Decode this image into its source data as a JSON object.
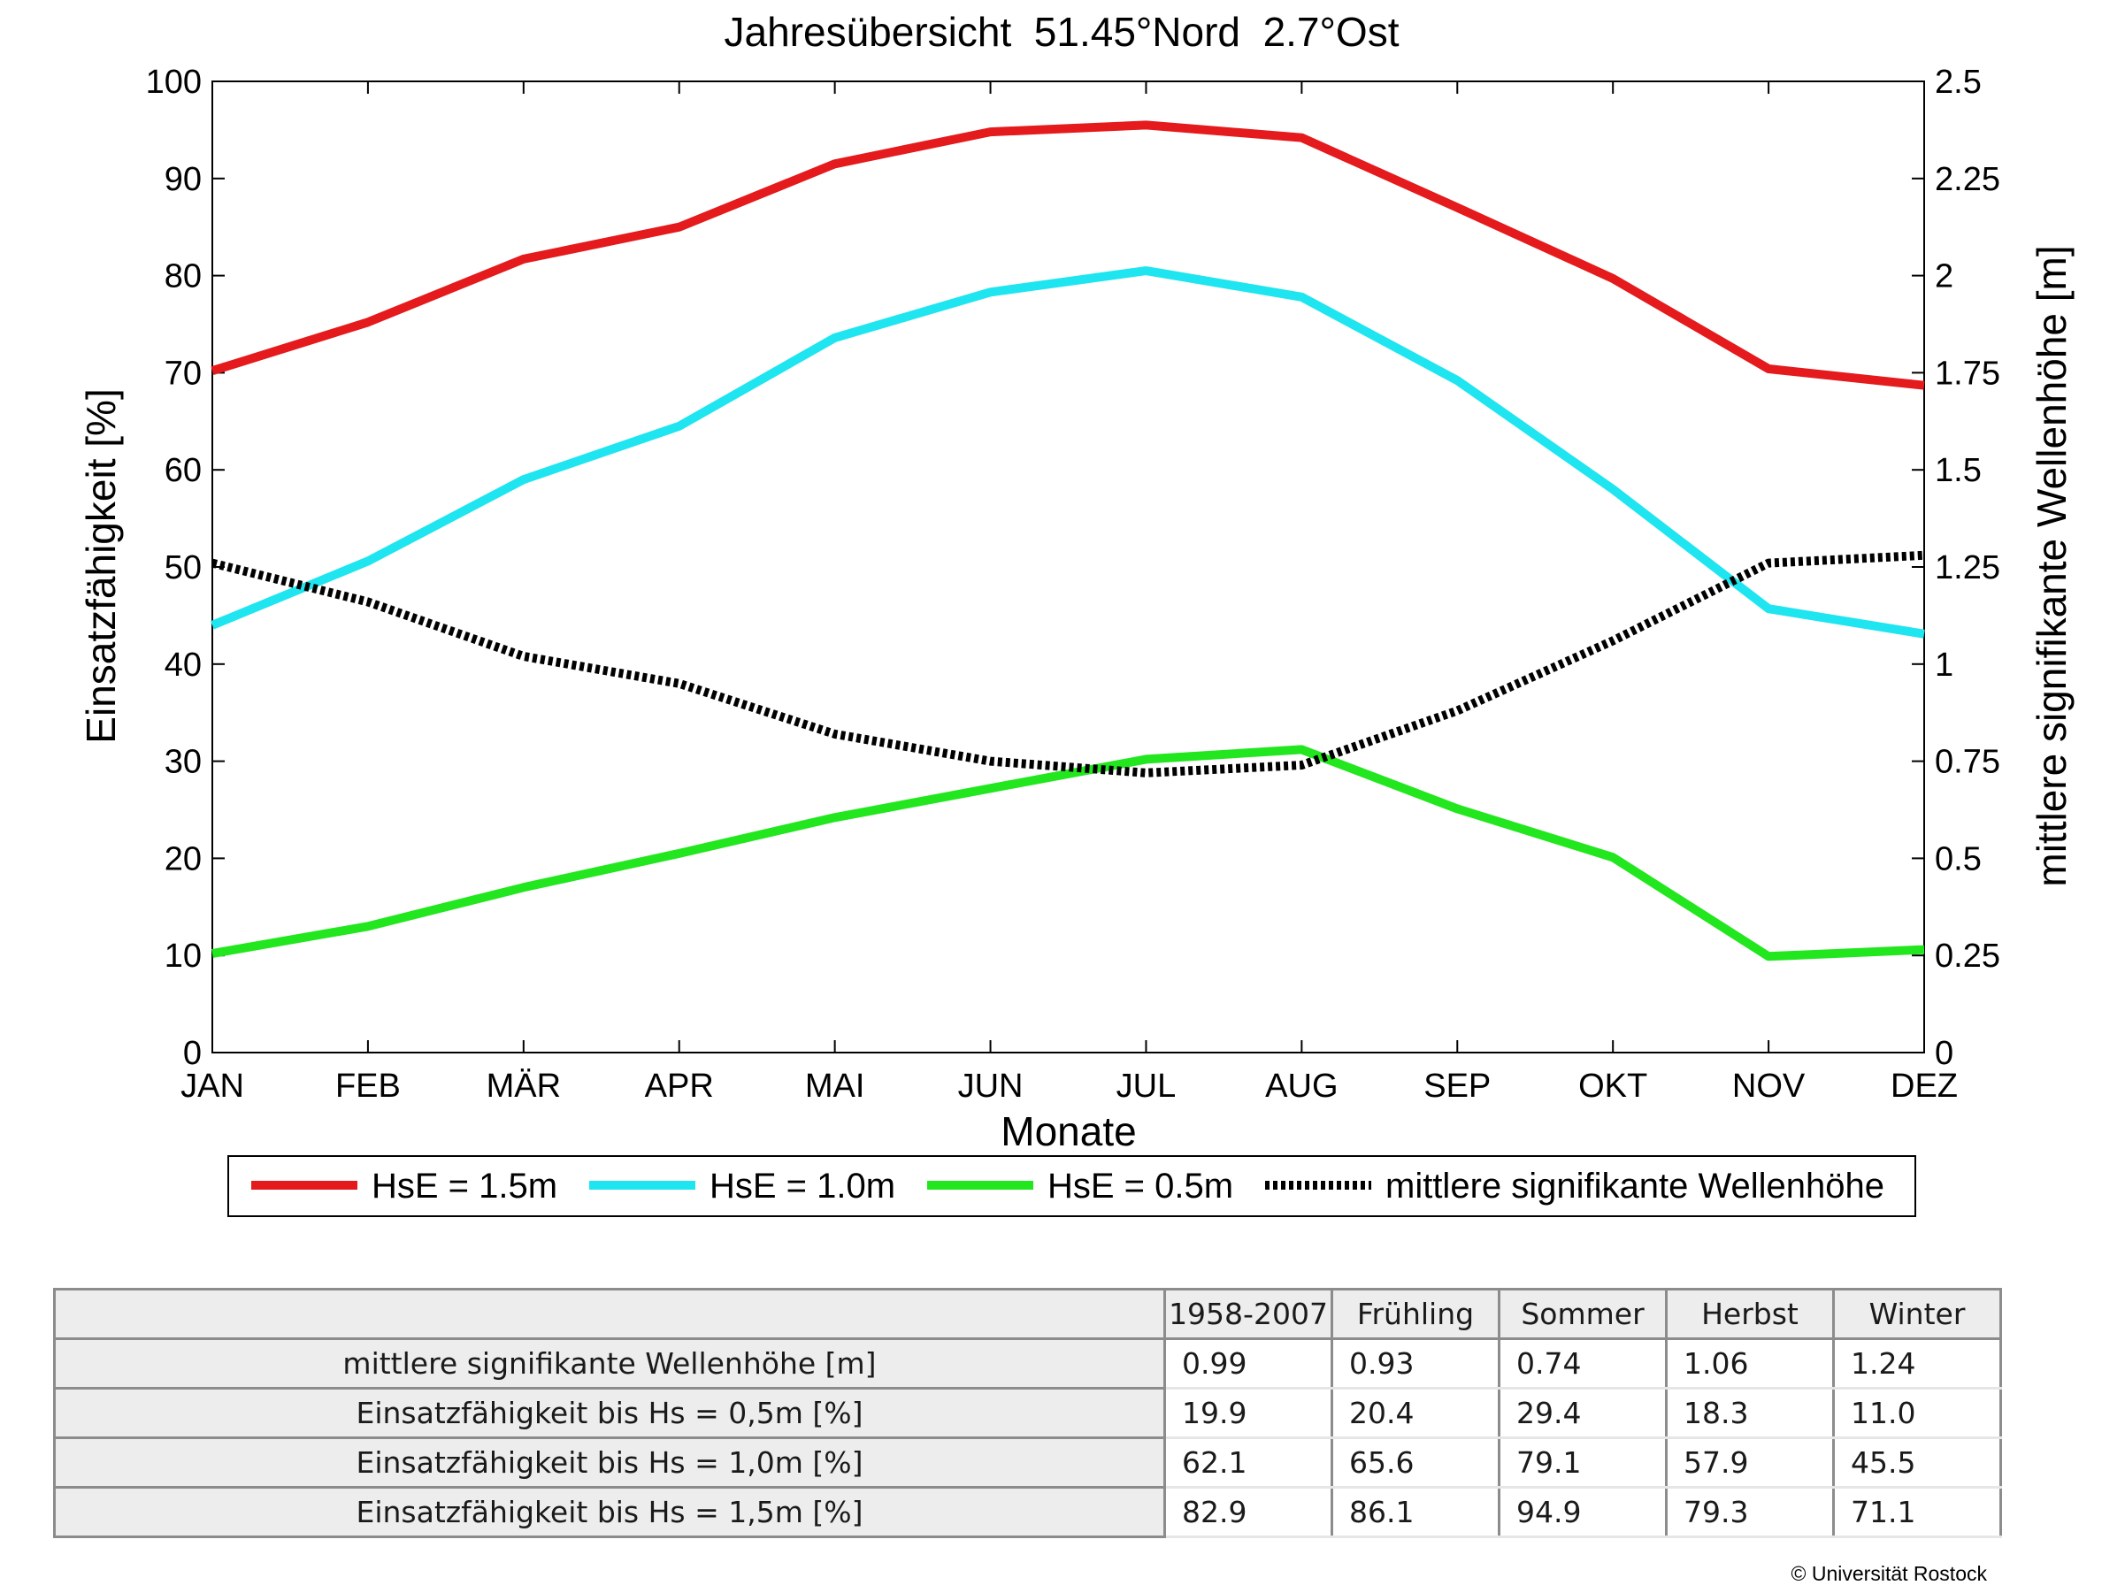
{
  "chart_data": {
    "type": "line",
    "title": "Jahresübersicht  51.45°Nord  2.7°Ost",
    "xlabel": "Monate",
    "ylabel_left": "Einsatzfähigkeit [%]",
    "ylabel_right": "mittlere signifikante Wellenhöhe [m]",
    "categories": [
      "JAN",
      "FEB",
      "MÄR",
      "APR",
      "MAI",
      "JUN",
      "JUL",
      "AUG",
      "SEP",
      "OKT",
      "NOV",
      "DEZ"
    ],
    "ylim_left": [
      0,
      100
    ],
    "ylim_right": [
      0,
      2.5
    ],
    "yticks_left": [
      "0",
      "10",
      "20",
      "30",
      "40",
      "50",
      "60",
      "70",
      "80",
      "90",
      "100"
    ],
    "yticks_right": [
      "0",
      "0.25",
      "0.5",
      "0.75",
      "1",
      "1.25",
      "1.5",
      "1.75",
      "2",
      "2.25",
      "2.5"
    ],
    "grid": false,
    "legend_position": "bottom",
    "series": [
      {
        "name": "HsE = 1.5m",
        "axis": "left",
        "color": "#e41a1c",
        "style": "solid",
        "values": [
          70.2,
          75.2,
          81.7,
          85.0,
          91.5,
          94.8,
          95.5,
          94.2,
          87.0,
          79.7,
          70.4,
          68.7
        ]
      },
      {
        "name": "HsE = 1.0m",
        "axis": "left",
        "color": "#1ee5ef",
        "style": "solid",
        "values": [
          44.0,
          50.6,
          59.0,
          64.5,
          73.6,
          78.3,
          80.5,
          77.8,
          69.2,
          58.0,
          45.7,
          43.1
        ]
      },
      {
        "name": "HsE = 0.5m",
        "axis": "left",
        "color": "#22e61e",
        "style": "solid",
        "values": [
          10.2,
          13.0,
          17.0,
          20.5,
          24.2,
          27.2,
          30.2,
          31.2,
          25.1,
          20.1,
          9.9,
          10.6
        ]
      },
      {
        "name": "mittlere signifikante Wellenhöhe",
        "axis": "right",
        "color": "#000000",
        "style": "dotted",
        "values": [
          1.26,
          1.16,
          1.02,
          0.95,
          0.82,
          0.75,
          0.72,
          0.74,
          0.88,
          1.06,
          1.26,
          1.28
        ]
      }
    ]
  },
  "table": {
    "headers": [
      "1958-2007",
      "Frühling",
      "Sommer",
      "Herbst",
      "Winter"
    ],
    "rows": [
      {
        "label": "mittlere signifikante Wellenhöhe [m]",
        "values": [
          "0.99",
          "0.93",
          "0.74",
          "1.06",
          "1.24"
        ]
      },
      {
        "label": "Einsatzfähigkeit bis Hs = 0,5m [%]",
        "values": [
          "19.9",
          "20.4",
          "29.4",
          "18.3",
          "11.0"
        ]
      },
      {
        "label": "Einsatzfähigkeit bis Hs = 1,0m [%]",
        "values": [
          "62.1",
          "65.6",
          "79.1",
          "57.9",
          "45.5"
        ]
      },
      {
        "label": "Einsatzfähigkeit bis Hs = 1,5m [%]",
        "values": [
          "82.9",
          "86.1",
          "94.9",
          "79.3",
          "71.1"
        ]
      }
    ]
  },
  "copyright": "© Universität Rostock"
}
